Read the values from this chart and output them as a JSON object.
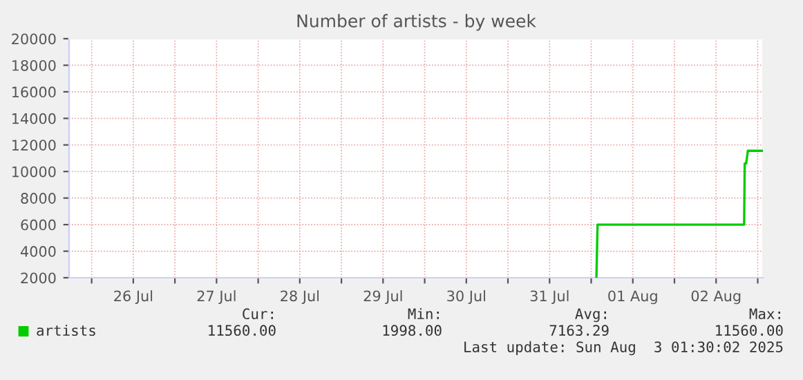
{
  "chart_data": {
    "type": "line",
    "title": "Number of artists - by week",
    "series": [
      {
        "name": "artists",
        "color": "#00cc00",
        "x": [
          "2025-08-01T01:30",
          "2025-08-01T01:50",
          "2025-08-02T20:05",
          "2025-08-02T20:15",
          "2025-08-02T20:40",
          "2025-08-02T21:10",
          "2025-08-03T01:30"
        ],
        "values": [
          2000,
          6000,
          6000,
          10600,
          10600,
          11560,
          11560
        ]
      }
    ],
    "xlim": [
      "2025-07-25T17:30",
      "2025-08-03T01:30"
    ],
    "xticks": [
      {
        "value": "2025-07-26T00:00",
        "label": null
      },
      {
        "value": "2025-07-26T12:00",
        "label": "26 Jul"
      },
      {
        "value": "2025-07-27T00:00",
        "label": null
      },
      {
        "value": "2025-07-27T12:00",
        "label": "27 Jul"
      },
      {
        "value": "2025-07-28T00:00",
        "label": null
      },
      {
        "value": "2025-07-28T12:00",
        "label": "28 Jul"
      },
      {
        "value": "2025-07-29T00:00",
        "label": null
      },
      {
        "value": "2025-07-29T12:00",
        "label": "29 Jul"
      },
      {
        "value": "2025-07-30T00:00",
        "label": null
      },
      {
        "value": "2025-07-30T12:00",
        "label": "30 Jul"
      },
      {
        "value": "2025-07-31T00:00",
        "label": null
      },
      {
        "value": "2025-07-31T12:00",
        "label": "31 Jul"
      },
      {
        "value": "2025-08-01T00:00",
        "label": null
      },
      {
        "value": "2025-08-01T12:00",
        "label": "01 Aug"
      },
      {
        "value": "2025-08-02T00:00",
        "label": null
      },
      {
        "value": "2025-08-02T12:00",
        "label": "02 Aug"
      },
      {
        "value": "2025-08-03T00:00",
        "label": null
      }
    ],
    "ylim": [
      2000,
      20000
    ],
    "yticks": [
      2000,
      4000,
      6000,
      8000,
      10000,
      12000,
      14000,
      16000,
      18000,
      20000
    ],
    "grid": true,
    "legend": "bottom left",
    "line_style": "solid",
    "marker": "none",
    "annotations": [
      "Cur:",
      "11560.00",
      "Min:",
      "1998.00",
      "Avg:",
      "7163.29",
      "Max:",
      "11560.00",
      "Last update: Sun Aug  3 01:30:02 2025"
    ]
  }
}
